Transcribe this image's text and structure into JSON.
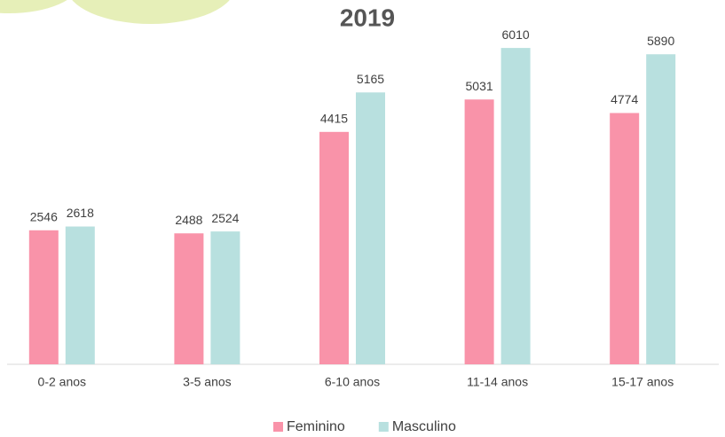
{
  "chart_data": {
    "type": "bar",
    "title": "2019",
    "categories": [
      "0-2 anos",
      "3-5 anos",
      "6-10 anos",
      "11-14 anos",
      "15-17 anos"
    ],
    "series": [
      {
        "name": "Feminino",
        "color": "#f993a9",
        "values": [
          2546,
          2488,
          4415,
          5031,
          4774
        ]
      },
      {
        "name": "Masculino",
        "color": "#b8e0df",
        "values": [
          2618,
          2524,
          5165,
          6010,
          5890
        ]
      }
    ],
    "ylim": [
      0,
      6500
    ],
    "legend": "bottom"
  }
}
